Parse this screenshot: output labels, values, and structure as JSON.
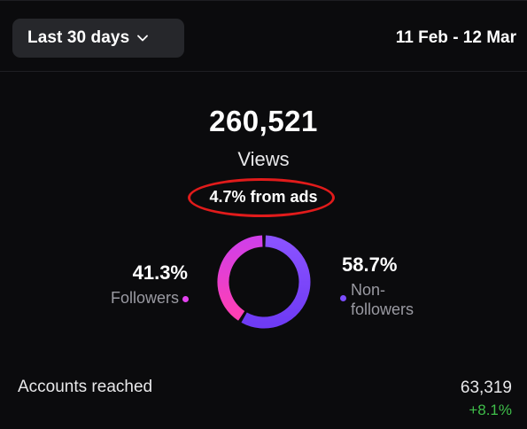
{
  "header": {
    "range_label": "Last 30 days",
    "date_range": "11 Feb - 12 Mar"
  },
  "summary": {
    "views_value": "260,521",
    "views_label": "Views",
    "ads_text": "4.7% from ads"
  },
  "breakdown": {
    "followers": {
      "percent": "41.3%",
      "label": "Followers",
      "fraction": 0.413,
      "color": "#e342f0"
    },
    "non_followers": {
      "percent": "58.7%",
      "label": "Non-\nfollowers",
      "fraction": 0.587,
      "color": "#7c4dff"
    }
  },
  "metrics": {
    "accounts_reached_label": "Accounts reached",
    "accounts_reached_value": "63,319",
    "accounts_reached_change": "+8.1%"
  },
  "icons": {
    "range_chevron": "chevron-down-icon"
  },
  "colors": {
    "background": "#0b0b0d",
    "button_bg": "#26272b",
    "annotation_red": "#e11b1b",
    "positive_green": "#3fbf4a"
  }
}
